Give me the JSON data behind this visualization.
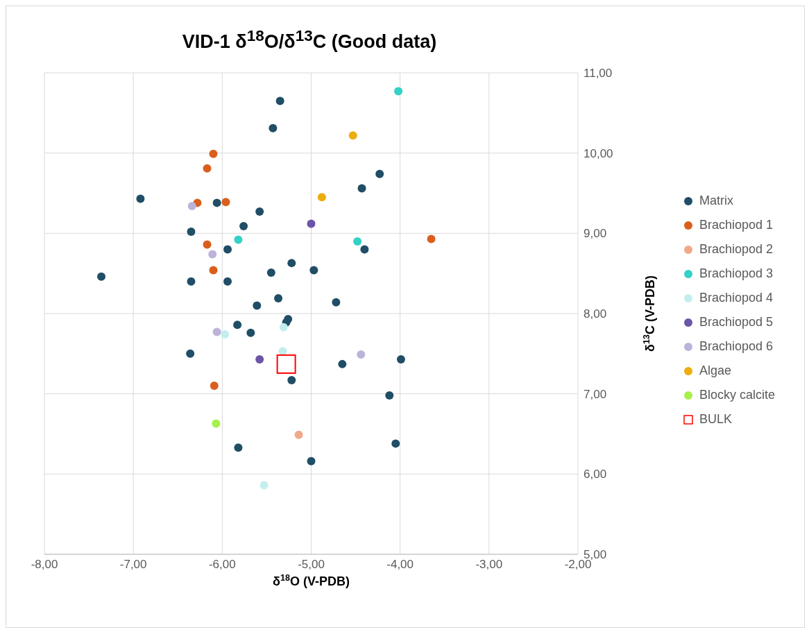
{
  "chart_data": {
    "type": "scatter",
    "title": "VID-1 δ$^{18}$O/δ$^{13}$C (Good data)",
    "xlabel": "δ$^{18}$O (V-PDB)",
    "ylabel": "δ$^{13}$C (V-PDB)",
    "xlim": [
      -8,
      -2
    ],
    "xticks": [
      {
        "value": -8,
        "label": "-8,00"
      },
      {
        "value": -7,
        "label": "-7,00"
      },
      {
        "value": -6,
        "label": "-6,00"
      },
      {
        "value": -5,
        "label": "-5,00"
      },
      {
        "value": -4,
        "label": "-4,00"
      },
      {
        "value": -3,
        "label": "-3,00"
      },
      {
        "value": -2,
        "label": "-2,00"
      }
    ],
    "ylim": [
      5,
      11
    ],
    "yticks": [
      {
        "value": 5,
        "label": "5,00"
      },
      {
        "value": 6,
        "label": "6,00"
      },
      {
        "value": 7,
        "label": "7,00"
      },
      {
        "value": 8,
        "label": "8,00"
      },
      {
        "value": 9,
        "label": "9,00"
      },
      {
        "value": 10,
        "label": "10,00"
      },
      {
        "value": 11,
        "label": "11,00"
      }
    ],
    "grid": true,
    "legend": "right",
    "marker": "circle",
    "series": [
      {
        "name": "Matrix",
        "color": "#1f4e66",
        "x": [
          -5.35,
          -5.43,
          -4.23,
          -4.43,
          -6.92,
          -6.06,
          -5.58,
          -5.76,
          -6.35,
          -5.94,
          -4.4,
          -5.22,
          -4.97,
          -7.36,
          -5.45,
          -6.35,
          -5.94,
          -5.37,
          -4.72,
          -5.61,
          -5.26,
          -5.28,
          -5.83,
          -5.68,
          -6.36,
          -3.99,
          -4.65,
          -5.22,
          -4.12,
          -5.82,
          -4.05,
          -5.0
        ],
        "values": [
          10.65,
          10.31,
          9.74,
          9.56,
          9.43,
          9.38,
          9.27,
          9.09,
          9.02,
          8.8,
          8.8,
          8.63,
          8.54,
          8.46,
          8.51,
          8.4,
          8.4,
          8.19,
          8.14,
          8.1,
          7.93,
          7.89,
          7.86,
          7.76,
          7.5,
          7.43,
          7.37,
          7.17,
          6.98,
          6.33,
          6.38,
          6.16
        ]
      },
      {
        "name": "Brachiopod 1",
        "color": "#d95f1e",
        "x": [
          -6.1,
          -6.17,
          -6.28,
          -5.96,
          -6.17,
          -6.1,
          -3.65,
          -6.09
        ],
        "values": [
          9.99,
          9.81,
          9.38,
          9.39,
          8.86,
          8.54,
          8.93,
          7.1
        ]
      },
      {
        "name": "Brachiopod 2",
        "color": "#f0a988",
        "x": [
          -5.14
        ],
        "values": [
          6.49
        ]
      },
      {
        "name": "Brachiopod 3",
        "color": "#33d1c6",
        "x": [
          -4.02,
          -5.82,
          -4.48
        ],
        "values": [
          10.77,
          8.92,
          8.9
        ]
      },
      {
        "name": "Brachiopod 4",
        "color": "#c4eeee",
        "x": [
          -5.31,
          -5.97,
          -5.32,
          -5.53
        ],
        "values": [
          7.83,
          7.74,
          7.53,
          5.86
        ]
      },
      {
        "name": "Brachiopod 5",
        "color": "#6a55a8",
        "x": [
          -5.0,
          -5.58
        ],
        "values": [
          9.12,
          7.43
        ]
      },
      {
        "name": "Brachiopod 6",
        "color": "#bcb3da",
        "x": [
          -6.34,
          -6.11,
          -6.06,
          -4.44
        ],
        "values": [
          9.34,
          8.74,
          7.77,
          7.49
        ]
      },
      {
        "name": "Algae",
        "color": "#ecad0e",
        "x": [
          -4.53,
          -4.88
        ],
        "values": [
          10.22,
          9.45
        ]
      },
      {
        "name": "Blocky calcite",
        "color": "#a6f04a",
        "x": [
          -6.07
        ],
        "values": [
          6.63
        ]
      },
      {
        "name": "BULK",
        "color": "#ff0000",
        "marker": "square",
        "x": [
          -5.28
        ],
        "values": [
          7.37
        ]
      }
    ]
  }
}
